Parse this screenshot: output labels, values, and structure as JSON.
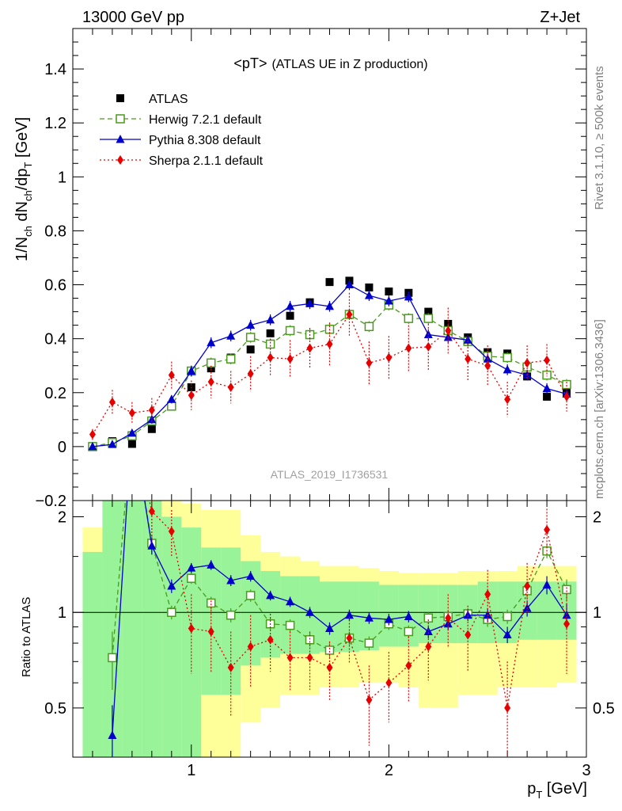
{
  "header": {
    "beam": "13000 GeV pp",
    "process": "Z+Jet",
    "plot_title_main": "<pT>",
    "plot_title_sub": "(ATLAS UE in Z production)",
    "analysis_id": "ATLAS_2019_I1736531",
    "side_text_1": "Rivet 3.1.10, ≥ 500k events",
    "side_text_2": "mcplots.cern.ch [arXiv:1306.3436]",
    "ylabel": "1/N_ch dN_ch/dp_T [GeV]",
    "ratio_ylabel": "Ratio to ATLAS",
    "xlabel": "p_T [GeV]"
  },
  "colors": {
    "data": "#000000",
    "herwig": "#4a9a1e",
    "pythia": "#0000cc",
    "sherpa": "#e60000",
    "band_inner": "#99f399",
    "band_outer": "#ffff99"
  },
  "chart_data": [
    {
      "type": "scatter",
      "panel": "main",
      "xlim": [
        0.4,
        3.0
      ],
      "ylim": [
        -0.2,
        1.55
      ],
      "y_ticks": [
        -0.2,
        0,
        0.2,
        0.4,
        0.6,
        0.8,
        1,
        1.2,
        1.4
      ],
      "y_tick_labels": [
        "−0.2",
        "0",
        "0.2",
        "0.4",
        "0.6",
        "0.8",
        "1",
        "1.2",
        "1.4"
      ],
      "x_ticks": [
        1,
        2,
        3
      ],
      "legend_position": "top-left",
      "x": [
        0.5,
        0.6,
        0.7,
        0.8,
        0.9,
        1.0,
        1.1,
        1.2,
        1.3,
        1.4,
        1.5,
        1.6,
        1.7,
        1.8,
        1.9,
        2.0,
        2.1,
        2.2,
        2.3,
        2.4,
        2.5,
        2.6,
        2.7,
        2.8,
        2.9
      ],
      "series": [
        {
          "name": "ATLAS",
          "key": "atlas",
          "values": [
            0.0,
            0.02,
            0.01,
            0.065,
            0.15,
            0.22,
            0.29,
            0.33,
            0.36,
            0.42,
            0.485,
            0.535,
            0.61,
            0.615,
            0.59,
            0.575,
            0.57,
            0.5,
            0.455,
            0.405,
            0.35,
            0.345,
            0.26,
            0.185,
            0.2
          ]
        },
        {
          "name": "Herwig 7.2.1 default",
          "key": "herwig",
          "values": [
            0.0,
            0.015,
            0.04,
            0.095,
            0.15,
            0.28,
            0.31,
            0.325,
            0.405,
            0.38,
            0.43,
            0.415,
            0.435,
            0.49,
            0.445,
            0.525,
            0.475,
            0.475,
            0.43,
            0.39,
            0.335,
            0.33,
            0.295,
            0.265,
            0.23
          ],
          "errors": [
            0.005,
            0.01,
            0.01,
            0.015,
            0.015,
            0.02,
            0.02,
            0.02,
            0.02,
            0.02,
            0.02,
            0.02,
            0.02,
            0.02,
            0.02,
            0.02,
            0.02,
            0.02,
            0.02,
            0.02,
            0.02,
            0.02,
            0.02,
            0.02,
            0.02
          ]
        },
        {
          "name": "Pythia 8.308 default",
          "key": "pythia",
          "values": [
            0.0,
            0.008,
            0.05,
            0.1,
            0.175,
            0.28,
            0.385,
            0.41,
            0.45,
            0.47,
            0.52,
            0.53,
            0.52,
            0.6,
            0.56,
            0.54,
            0.555,
            0.415,
            0.405,
            0.395,
            0.325,
            0.285,
            0.265,
            0.215,
            0.195
          ],
          "errors": [
            0.005,
            0.008,
            0.01,
            0.015,
            0.015,
            0.02,
            0.02,
            0.02,
            0.02,
            0.02,
            0.02,
            0.02,
            0.02,
            0.02,
            0.02,
            0.02,
            0.02,
            0.02,
            0.02,
            0.02,
            0.02,
            0.02,
            0.02,
            0.02,
            0.02
          ]
        },
        {
          "name": "Sherpa 2.1.1 default",
          "key": "sherpa",
          "values": [
            0.045,
            0.165,
            0.125,
            0.135,
            0.265,
            0.19,
            0.24,
            0.22,
            0.27,
            0.33,
            0.325,
            0.365,
            0.38,
            0.49,
            0.31,
            0.33,
            0.365,
            0.37,
            0.43,
            0.325,
            0.3,
            0.175,
            0.31,
            0.32,
            0.185
          ],
          "errors": [
            0.02,
            0.045,
            0.04,
            0.045,
            0.05,
            0.055,
            0.06,
            0.06,
            0.065,
            0.07,
            0.07,
            0.075,
            0.08,
            0.08,
            0.08,
            0.08,
            0.085,
            0.085,
            0.085,
            0.08,
            0.075,
            0.065,
            0.065,
            0.06,
            0.055
          ]
        }
      ]
    },
    {
      "type": "line",
      "panel": "ratio",
      "title": "",
      "ylabel": "Ratio to ATLAS",
      "xlabel": "p_T [GeV]",
      "xlim": [
        0.4,
        3.0
      ],
      "ylim": [
        0.35,
        2.25
      ],
      "y_ticks": [
        0.5,
        1,
        2
      ],
      "y_tick_labels": [
        "0.5",
        "1",
        "2"
      ],
      "x_ticks": [
        1,
        2,
        3
      ],
      "x_tick_labels": [
        "1",
        "2",
        "3"
      ],
      "reference_line": 1,
      "x": [
        0.5,
        0.6,
        0.7,
        0.8,
        0.9,
        1.0,
        1.1,
        1.2,
        1.3,
        1.4,
        1.5,
        1.6,
        1.7,
        1.8,
        1.9,
        2.0,
        2.1,
        2.2,
        2.3,
        2.4,
        2.5,
        2.6,
        2.7,
        2.8,
        2.9
      ],
      "band_inner": [
        [
          0.15,
          1.55
        ],
        [
          0.15,
          3.0
        ],
        [
          0.15,
          3.0
        ],
        [
          0.15,
          3.0
        ],
        [
          0.15,
          2.0
        ],
        [
          0.15,
          1.85
        ],
        [
          0.55,
          1.6
        ],
        [
          0.55,
          1.6
        ],
        [
          0.68,
          1.45
        ],
        [
          0.72,
          1.35
        ],
        [
          0.74,
          1.3
        ],
        [
          0.74,
          1.3
        ],
        [
          0.75,
          1.25
        ],
        [
          0.75,
          1.25
        ],
        [
          0.76,
          1.25
        ],
        [
          0.78,
          1.22
        ],
        [
          0.78,
          1.22
        ],
        [
          0.8,
          1.22
        ],
        [
          0.8,
          1.22
        ],
        [
          0.8,
          1.22
        ],
        [
          0.8,
          1.25
        ],
        [
          0.8,
          1.25
        ],
        [
          0.82,
          1.25
        ],
        [
          0.82,
          1.25
        ],
        [
          0.82,
          1.25
        ]
      ],
      "band_outer": [
        [
          0.15,
          1.85
        ],
        [
          0.15,
          3.0
        ],
        [
          0.15,
          3.0
        ],
        [
          0.15,
          3.0
        ],
        [
          0.15,
          2.4
        ],
        [
          0.15,
          2.2
        ],
        [
          0.3,
          2.1
        ],
        [
          0.3,
          2.1
        ],
        [
          0.45,
          1.75
        ],
        [
          0.5,
          1.55
        ],
        [
          0.55,
          1.5
        ],
        [
          0.55,
          1.45
        ],
        [
          0.58,
          1.4
        ],
        [
          0.58,
          1.4
        ],
        [
          0.6,
          1.38
        ],
        [
          0.6,
          1.35
        ],
        [
          0.58,
          1.33
        ],
        [
          0.5,
          1.33
        ],
        [
          0.5,
          1.33
        ],
        [
          0.55,
          1.35
        ],
        [
          0.55,
          1.35
        ],
        [
          0.58,
          1.35
        ],
        [
          0.58,
          1.4
        ],
        [
          0.58,
          1.4
        ],
        [
          0.6,
          1.4
        ]
      ],
      "series": [
        {
          "name": "Herwig 7.2.1 default",
          "key": "herwig",
          "values": [
            null,
            0.72,
            4.0,
            1.65,
            1.0,
            1.28,
            1.07,
            0.98,
            1.13,
            0.92,
            0.91,
            0.82,
            0.76,
            0.83,
            0.8,
            0.92,
            0.87,
            0.96,
            0.97,
            0.99,
            0.95,
            0.97,
            1.17,
            1.56,
            1.18
          ],
          "errors": [
            null,
            0.15,
            0.3,
            0.1,
            0.05,
            0.05,
            0.05,
            0.05,
            0.05,
            0.04,
            0.04,
            0.04,
            0.04,
            0.04,
            0.04,
            0.04,
            0.04,
            0.04,
            0.04,
            0.04,
            0.05,
            0.05,
            0.06,
            0.08,
            0.09
          ]
        },
        {
          "name": "Pythia 8.308 default",
          "key": "pythia",
          "values": [
            null,
            0.41,
            4.0,
            1.62,
            1.21,
            1.38,
            1.41,
            1.26,
            1.3,
            1.13,
            1.08,
            1.0,
            0.89,
            0.98,
            0.96,
            0.95,
            0.97,
            0.87,
            0.92,
            0.98,
            0.98,
            0.85,
            1.03,
            1.22,
            0.98
          ],
          "errors": [
            null,
            0.1,
            0.3,
            0.1,
            0.06,
            0.05,
            0.05,
            0.05,
            0.05,
            0.04,
            0.04,
            0.04,
            0.04,
            0.04,
            0.04,
            0.04,
            0.04,
            0.04,
            0.04,
            0.04,
            0.05,
            0.05,
            0.06,
            0.08,
            0.09
          ]
        },
        {
          "name": "Sherpa 2.1.1 default",
          "key": "sherpa",
          "values": [
            null,
            null,
            4.0,
            2.08,
            1.8,
            0.89,
            0.87,
            0.67,
            0.78,
            0.82,
            0.72,
            0.72,
            0.67,
            0.83,
            0.53,
            0.6,
            0.68,
            0.78,
            0.96,
            0.85,
            1.14,
            0.5,
            1.21,
            1.82,
            0.92
          ],
          "errors": [
            null,
            null,
            0.5,
            0.4,
            0.3,
            0.25,
            0.22,
            0.2,
            0.2,
            0.17,
            0.15,
            0.15,
            0.14,
            0.14,
            0.15,
            0.15,
            0.16,
            0.17,
            0.18,
            0.2,
            0.22,
            0.2,
            0.22,
            0.3,
            0.28
          ]
        }
      ]
    }
  ]
}
